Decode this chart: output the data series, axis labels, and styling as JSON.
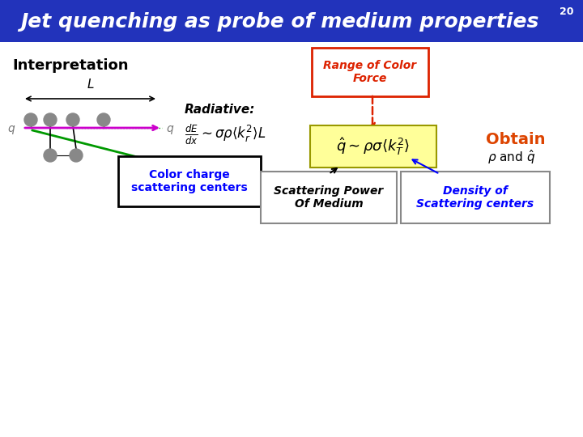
{
  "title": "Jet quenching as probe of medium properties",
  "slide_number": "20",
  "title_bg_color": "#2233BB",
  "title_text_color": "#FFFFFF",
  "bg_color": "#FFFFFF",
  "interpretation_label": "Interpretation",
  "radiative_label": "Radiative:",
  "color_charge_box_text": "Color charge\nscattering centers",
  "range_color_force_text": "Range of Color\nForce",
  "qhat_formula": "$\\hat{q} \\sim \\rho\\sigma\\langle k_T^2\\rangle$",
  "obtain_label": "Obtain",
  "obtain_rho": "$\\rho$",
  "obtain_and": " and ",
  "obtain_qhat": "$\\hat{q}$",
  "scattering_power_text": "Scattering Power\nOf Medium",
  "density_scattering_text": "Density of\nScattering centers",
  "dEdx_formula": "$\\frac{dE}{dx}\\sim\\sigma\\rho\\langle k_r^2\\rangle L$"
}
